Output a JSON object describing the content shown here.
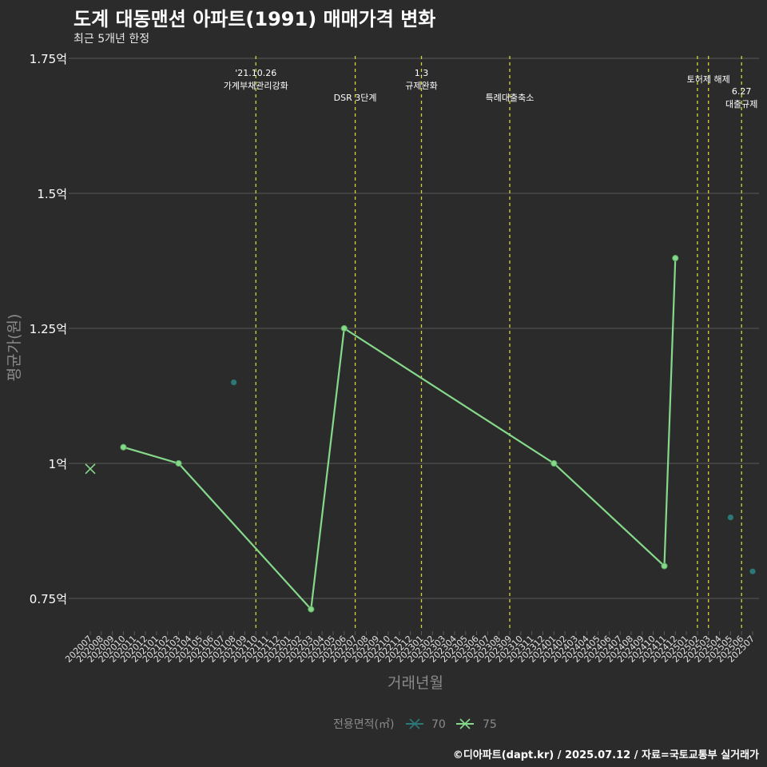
{
  "header": {
    "title": "도계 대동맨션 아파트(1991) 매매가격 변화",
    "subtitle": "최근 5개년 한정"
  },
  "footer": {
    "caption": "©디아파트(dapt.kr) / 2025.07.12 / 자료=국토교통부 실거래가"
  },
  "colors": {
    "background": "#2b2b2b",
    "grid": "#5a5a5a",
    "series70": "#2a7877",
    "series75": "#86d98a",
    "event_line": "#d4d43a",
    "axis_text": "#ffffff",
    "axis_title": "#8a8a8a"
  },
  "chart_data": {
    "type": "line",
    "title": "도계 대동맨션 아파트(1991) 매매가격 변화",
    "subtitle": "최근 5개년 한정",
    "xlabel": "거래년월",
    "ylabel": "평균가(원)",
    "ylim": [
      0.69,
      1.765
    ],
    "yticks": [
      {
        "value": 0.75,
        "label": "0.75억"
      },
      {
        "value": 1.0,
        "label": "1억"
      },
      {
        "value": 1.25,
        "label": "1.25억"
      },
      {
        "value": 1.5,
        "label": "1.5억"
      },
      {
        "value": 1.75,
        "label": "1.75억"
      }
    ],
    "categories": [
      "202007",
      "202008",
      "202009",
      "202010",
      "202011",
      "202012",
      "202101",
      "202102",
      "202103",
      "202104",
      "202105",
      "202106",
      "202107",
      "202108",
      "202109",
      "202110",
      "202111",
      "202112",
      "202201",
      "202202",
      "202203",
      "202204",
      "202205",
      "202206",
      "202207",
      "202208",
      "202209",
      "202210",
      "202211",
      "202212",
      "202301",
      "202302",
      "202303",
      "202304",
      "202305",
      "202306",
      "202307",
      "202308",
      "202309",
      "202310",
      "202311",
      "202312",
      "202401",
      "202402",
      "202403",
      "202404",
      "202405",
      "202406",
      "202407",
      "202408",
      "202409",
      "202410",
      "202411",
      "202412",
      "202501",
      "202502",
      "202503",
      "202504",
      "202505",
      "202506",
      "202507"
    ],
    "series": [
      {
        "name": "70",
        "points": [
          {
            "x": "202108",
            "y": 1.15
          },
          {
            "x": "202505",
            "y": 0.9
          },
          {
            "x": "202507",
            "y": 0.8
          }
        ]
      },
      {
        "name": "75",
        "points": [
          {
            "x": "202007",
            "y": 0.99,
            "marker": "x"
          },
          {
            "x": "202010",
            "y": 1.03
          },
          {
            "x": "202103",
            "y": 1.0
          },
          {
            "x": "202203",
            "y": 0.73
          },
          {
            "x": "202206",
            "y": 1.25
          },
          {
            "x": "202401",
            "y": 1.0
          },
          {
            "x": "202411",
            "y": 0.81
          },
          {
            "x": "202412",
            "y": 1.38
          }
        ]
      }
    ],
    "events": [
      {
        "x": "202110",
        "line1": "'21.10.26",
        "line2": "가계부채관리강화"
      },
      {
        "x": "202207",
        "line1": "",
        "line2": "DSR 3단계"
      },
      {
        "x": "202301",
        "line1": "1.3",
        "line2": "규제완화"
      },
      {
        "x": "202309",
        "line1": "",
        "line2": "특례대출축소"
      },
      {
        "x": "202502",
        "line1": "",
        "line2": ""
      },
      {
        "x": "202503",
        "line1": "토허제 해제",
        "line2": ""
      },
      {
        "x": "202506",
        "line1": "6.27",
        "line2": "대출규제"
      }
    ],
    "legend": {
      "title": "전용면적(㎡)",
      "entries": [
        "70",
        "75"
      ],
      "position": "bottom"
    }
  }
}
